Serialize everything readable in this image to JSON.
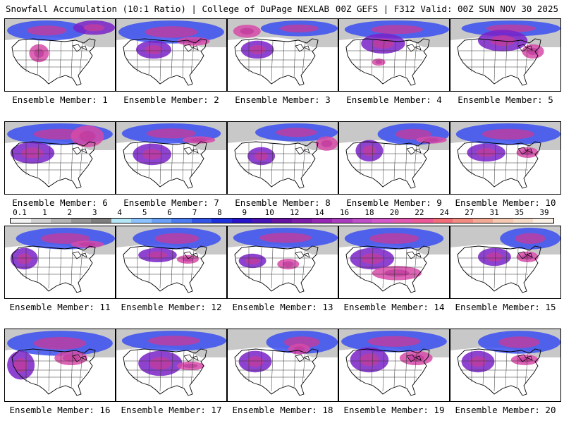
{
  "header": {
    "left": "Snowfall Accumulation (10:1 Ratio) | College of DuPage NEXLAB",
    "right": "00Z GEFS | F312 Valid: 00Z SUN NOV 30 2025"
  },
  "panel_label_prefix": "Ensemble Member: ",
  "members": [
    1,
    2,
    3,
    4,
    5,
    6,
    7,
    8,
    9,
    10,
    11,
    12,
    13,
    14,
    15,
    16,
    17,
    18,
    19,
    20
  ],
  "colorbar": {
    "labels": [
      "0.1",
      "1",
      "2",
      "3",
      "4",
      "5",
      "6",
      "7",
      "8",
      "9",
      "10",
      "12",
      "14",
      "16",
      "18",
      "20",
      "22",
      "24",
      "27",
      "31",
      "35",
      "39"
    ],
    "colors": [
      "#f4f4f4",
      "#d2d2d2",
      "#b4b4b4",
      "#969696",
      "#7e7e7e",
      "#b4e6f5",
      "#8cc3ff",
      "#6aa0f5",
      "#4d7cf0",
      "#3355e6",
      "#1e30dc",
      "#2814c8",
      "#4614b4",
      "#6414a0",
      "#7d1eaa",
      "#9628b4",
      "#aa3cbe",
      "#be50c8",
      "#d25ac8",
      "#e15aaf",
      "#eb5a96",
      "#f06e78",
      "#f08c82",
      "#f0aa96",
      "#f5c8b4",
      "#f5dcc8",
      "#faf0e6"
    ]
  },
  "panels": [
    {
      "region": "lightgray",
      "snow": [
        [
          0.02,
          0.02,
          0.72,
          0.28
        ],
        [
          0.62,
          0.02,
          0.38,
          0.2
        ],
        [
          0.22,
          0.35,
          0.18,
          0.25
        ]
      ]
    },
    {
      "region": "lightgray",
      "snow": [
        [
          0.02,
          0.02,
          0.96,
          0.32
        ],
        [
          0.18,
          0.3,
          0.32,
          0.25
        ],
        [
          0.55,
          0.25,
          0.3,
          0.12
        ]
      ]
    },
    {
      "region": "lightgray",
      "snow": [
        [
          0.3,
          0.02,
          0.7,
          0.22
        ],
        [
          0.12,
          0.3,
          0.3,
          0.25
        ],
        [
          0.05,
          0.08,
          0.25,
          0.18
        ]
      ]
    },
    {
      "region": "lightgray",
      "snow": [
        [
          0.05,
          0.02,
          0.95,
          0.25
        ],
        [
          0.2,
          0.2,
          0.4,
          0.28
        ],
        [
          0.3,
          0.55,
          0.12,
          0.1
        ]
      ]
    },
    {
      "region": "lightgray",
      "snow": [
        [
          0.1,
          0.02,
          0.9,
          0.22
        ],
        [
          0.25,
          0.15,
          0.45,
          0.3
        ],
        [
          0.65,
          0.35,
          0.2,
          0.2
        ]
      ]
    },
    {
      "region": "lightgray",
      "snow": [
        [
          0.02,
          0.02,
          0.96,
          0.3
        ],
        [
          0.05,
          0.28,
          0.4,
          0.3
        ],
        [
          0.6,
          0.05,
          0.3,
          0.3
        ]
      ]
    },
    {
      "region": "lightgray",
      "snow": [
        [
          0.05,
          0.02,
          0.9,
          0.28
        ],
        [
          0.15,
          0.3,
          0.35,
          0.3
        ],
        [
          0.6,
          0.2,
          0.3,
          0.1
        ]
      ]
    },
    {
      "region": "lightgray",
      "snow": [
        [
          0.25,
          0.02,
          0.75,
          0.25
        ],
        [
          0.18,
          0.35,
          0.25,
          0.25
        ],
        [
          0.8,
          0.2,
          0.2,
          0.2
        ]
      ]
    },
    {
      "region": "lightgray",
      "snow": [
        [
          0.35,
          0.02,
          0.65,
          0.3
        ],
        [
          0.15,
          0.25,
          0.25,
          0.3
        ],
        [
          0.7,
          0.2,
          0.28,
          0.1
        ]
      ]
    },
    {
      "region": "lightgray",
      "snow": [
        [
          0.05,
          0.02,
          0.95,
          0.3
        ],
        [
          0.15,
          0.3,
          0.35,
          0.25
        ],
        [
          0.6,
          0.35,
          0.2,
          0.15
        ]
      ]
    },
    {
      "region": "lightgray",
      "snow": [
        [
          0.1,
          0.02,
          0.9,
          0.3
        ],
        [
          0.05,
          0.3,
          0.25,
          0.3
        ],
        [
          0.6,
          0.2,
          0.3,
          0.1
        ]
      ]
    },
    {
      "region": "lightgray",
      "snow": [
        [
          0.15,
          0.02,
          0.8,
          0.3
        ],
        [
          0.2,
          0.3,
          0.35,
          0.2
        ],
        [
          0.55,
          0.4,
          0.2,
          0.12
        ]
      ]
    },
    {
      "region": "lightgray",
      "snow": [
        [
          0.05,
          0.02,
          0.95,
          0.28
        ],
        [
          0.1,
          0.38,
          0.25,
          0.2
        ],
        [
          0.45,
          0.45,
          0.2,
          0.15
        ]
      ]
    },
    {
      "region": "lightgray",
      "snow": [
        [
          0.05,
          0.02,
          0.9,
          0.3
        ],
        [
          0.1,
          0.3,
          0.4,
          0.3
        ],
        [
          0.3,
          0.55,
          0.45,
          0.2
        ]
      ]
    },
    {
      "region": "lightgray",
      "snow": [
        [
          0.45,
          0.02,
          0.55,
          0.3
        ],
        [
          0.25,
          0.3,
          0.3,
          0.25
        ],
        [
          0.6,
          0.35,
          0.2,
          0.15
        ]
      ]
    },
    {
      "region": "lightgray",
      "snow": [
        [
          0.02,
          0.02,
          0.96,
          0.35
        ],
        [
          0.02,
          0.3,
          0.25,
          0.4
        ],
        [
          0.45,
          0.3,
          0.3,
          0.2
        ]
      ]
    },
    {
      "region": "lightgray",
      "snow": [
        [
          0.05,
          0.02,
          0.95,
          0.28
        ],
        [
          0.2,
          0.3,
          0.4,
          0.35
        ],
        [
          0.55,
          0.45,
          0.25,
          0.12
        ]
      ]
    },
    {
      "region": "lightgray",
      "snow": [
        [
          0.35,
          0.02,
          0.65,
          0.32
        ],
        [
          0.1,
          0.3,
          0.3,
          0.3
        ],
        [
          0.55,
          0.2,
          0.2,
          0.15
        ]
      ]
    },
    {
      "region": "lightgray",
      "snow": [
        [
          0.02,
          0.02,
          0.96,
          0.3
        ],
        [
          0.1,
          0.25,
          0.35,
          0.35
        ],
        [
          0.55,
          0.3,
          0.3,
          0.2
        ]
      ]
    },
    {
      "region": "lightgray",
      "snow": [
        [
          0.25,
          0.02,
          0.75,
          0.32
        ],
        [
          0.1,
          0.3,
          0.3,
          0.3
        ],
        [
          0.55,
          0.35,
          0.25,
          0.15
        ]
      ]
    }
  ]
}
